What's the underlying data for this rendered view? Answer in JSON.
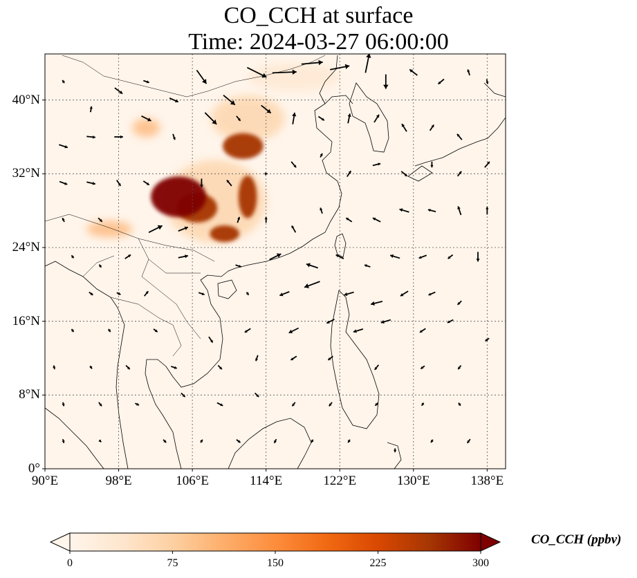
{
  "title": {
    "line1": "CO_CCH at surface",
    "line2": "Time: 2024-03-27 06:00:00"
  },
  "map": {
    "extent": {
      "lon": [
        90,
        140
      ],
      "lat": [
        0,
        45
      ]
    },
    "lon_ticks": [
      {
        "value": 90,
        "label": "90°E"
      },
      {
        "value": 98,
        "label": "98°E"
      },
      {
        "value": 106,
        "label": "106°E"
      },
      {
        "value": 114,
        "label": "114°E"
      },
      {
        "value": 122,
        "label": "122°E"
      },
      {
        "value": 130,
        "label": "130°E"
      },
      {
        "value": 138,
        "label": "138°E"
      }
    ],
    "lat_ticks": [
      {
        "value": 0,
        "label": "0°"
      },
      {
        "value": 8,
        "label": "8°N"
      },
      {
        "value": 16,
        "label": "16°N"
      },
      {
        "value": 24,
        "label": "24°N"
      },
      {
        "value": 32,
        "label": "32°N"
      },
      {
        "value": 40,
        "label": "40°N"
      }
    ],
    "gridlines": true,
    "background_color": "#fff5eb",
    "coastline_color": "#000000"
  },
  "colorbar": {
    "label": "CO_CCH (ppbv)",
    "colormap": "OrRd",
    "range": [
      0,
      300
    ],
    "ticks": [
      "0",
      "75",
      "150",
      "225",
      "300"
    ],
    "extend": "both",
    "colors": [
      "#fff5eb",
      "#fee6ce",
      "#fdd0a2",
      "#fdae6b",
      "#fd8d3c",
      "#f16913",
      "#d94801",
      "#a63603",
      "#7f0000"
    ]
  },
  "concentration_hotspots": [
    {
      "lon": 104.5,
      "lat": 29.5,
      "rx": 3.0,
      "ry": 2.2,
      "level": 300
    },
    {
      "lon": 106.5,
      "lat": 28.3,
      "rx": 2.2,
      "ry": 1.6,
      "level": 280
    },
    {
      "lon": 111.5,
      "lat": 35.0,
      "rx": 2.2,
      "ry": 1.4,
      "level": 260
    },
    {
      "lon": 112.0,
      "lat": 29.5,
      "rx": 1.0,
      "ry": 2.3,
      "level": 270
    },
    {
      "lon": 109.5,
      "lat": 25.5,
      "rx": 1.6,
      "ry": 0.9,
      "level": 260
    },
    {
      "lon": 97.0,
      "lat": 26.0,
      "rx": 2.5,
      "ry": 0.9,
      "level": 130
    },
    {
      "lon": 101.0,
      "lat": 37.0,
      "rx": 1.5,
      "ry": 1.0,
      "level": 120
    },
    {
      "lon": 108.5,
      "lat": 29.0,
      "rx": 5.5,
      "ry": 4.5,
      "level": 90
    },
    {
      "lon": 112.0,
      "lat": 38.0,
      "rx": 4.0,
      "ry": 2.5,
      "level": 60
    },
    {
      "lon": 117.0,
      "lat": 42.5,
      "rx": 5.0,
      "ry": 1.5,
      "level": 40
    }
  ],
  "wind_vectors": [
    {
      "lon": 92,
      "lat": 42,
      "u": -0.2,
      "v": 0.3
    },
    {
      "lon": 95,
      "lat": 39,
      "u": 0.1,
      "v": 0.6
    },
    {
      "lon": 98,
      "lat": 41,
      "u": 0.8,
      "v": -0.6
    },
    {
      "lon": 101,
      "lat": 42,
      "u": 0.6,
      "v": -0.2
    },
    {
      "lon": 104,
      "lat": 40,
      "u": 0.9,
      "v": -0.4
    },
    {
      "lon": 107,
      "lat": 42.5,
      "u": 1.0,
      "v": -1.4
    },
    {
      "lon": 110,
      "lat": 40,
      "u": 1.2,
      "v": -1.0
    },
    {
      "lon": 113,
      "lat": 43,
      "u": 2.0,
      "v": -1.0
    },
    {
      "lon": 116,
      "lat": 43,
      "u": 2.5,
      "v": 0.1
    },
    {
      "lon": 119,
      "lat": 44,
      "u": 2.2,
      "v": 0.2
    },
    {
      "lon": 122,
      "lat": 43.5,
      "u": 2.0,
      "v": 0.4
    },
    {
      "lon": 125,
      "lat": 44,
      "u": 0.4,
      "v": 2.0
    },
    {
      "lon": 127,
      "lat": 42,
      "u": 0.0,
      "v": -1.5
    },
    {
      "lon": 130,
      "lat": 43,
      "u": -0.8,
      "v": 0.6
    },
    {
      "lon": 133,
      "lat": 42,
      "u": -0.6,
      "v": -0.5
    },
    {
      "lon": 136,
      "lat": 43,
      "u": -0.2,
      "v": 0.6
    },
    {
      "lon": 138,
      "lat": 42,
      "u": 0.1,
      "v": -0.5
    },
    {
      "lon": 92,
      "lat": 35,
      "u": 0.9,
      "v": -0.3
    },
    {
      "lon": 95,
      "lat": 36,
      "u": 0.9,
      "v": -0.1
    },
    {
      "lon": 98,
      "lat": 36,
      "u": 0.9,
      "v": 0.0
    },
    {
      "lon": 101,
      "lat": 38,
      "u": 1.0,
      "v": -0.5
    },
    {
      "lon": 104,
      "lat": 36,
      "u": 0.2,
      "v": -0.6
    },
    {
      "lon": 108,
      "lat": 38,
      "u": 1.2,
      "v": -1.2
    },
    {
      "lon": 111,
      "lat": 38,
      "u": 0.4,
      "v": -0.5
    },
    {
      "lon": 114,
      "lat": 39,
      "u": 1.0,
      "v": -0.8
    },
    {
      "lon": 117,
      "lat": 38,
      "u": 0.2,
      "v": 1.2
    },
    {
      "lon": 120,
      "lat": 38,
      "u": 0.6,
      "v": -0.4
    },
    {
      "lon": 123,
      "lat": 38,
      "u": 0.2,
      "v": 1.0
    },
    {
      "lon": 126,
      "lat": 38,
      "u": 0.5,
      "v": 0.8
    },
    {
      "lon": 129,
      "lat": 37,
      "u": -0.5,
      "v": 0.8
    },
    {
      "lon": 132,
      "lat": 37,
      "u": 0.4,
      "v": 0.6
    },
    {
      "lon": 135,
      "lat": 36,
      "u": -0.5,
      "v": 0.6
    },
    {
      "lon": 92,
      "lat": 31,
      "u": 0.8,
      "v": -0.3
    },
    {
      "lon": 95,
      "lat": 31,
      "u": 0.9,
      "v": -0.2
    },
    {
      "lon": 98,
      "lat": 31,
      "u": 0.4,
      "v": -0.6
    },
    {
      "lon": 101,
      "lat": 31,
      "u": 0.6,
      "v": -0.4
    },
    {
      "lon": 107,
      "lat": 31,
      "u": 0.0,
      "v": -0.9
    },
    {
      "lon": 110,
      "lat": 31,
      "u": -0.5,
      "v": 0.6
    },
    {
      "lon": 114,
      "lat": 32,
      "u": 0.3,
      "v": 0.0
    },
    {
      "lon": 117,
      "lat": 33,
      "u": 0.5,
      "v": -0.6
    },
    {
      "lon": 120,
      "lat": 34,
      "u": 0.2,
      "v": 0.4
    },
    {
      "lon": 123,
      "lat": 32,
      "u": 0.4,
      "v": 0.6
    },
    {
      "lon": 126,
      "lat": 33,
      "u": 0.8,
      "v": 0.2
    },
    {
      "lon": 129,
      "lat": 32,
      "u": 0.6,
      "v": -0.5
    },
    {
      "lon": 132,
      "lat": 33,
      "u": 0.0,
      "v": -0.6
    },
    {
      "lon": 135,
      "lat": 32,
      "u": 0.4,
      "v": 0.5
    },
    {
      "lon": 138,
      "lat": 33,
      "u": 0.5,
      "v": 0.6
    },
    {
      "lon": 92,
      "lat": 27,
      "u": -0.2,
      "v": 0.4
    },
    {
      "lon": 96,
      "lat": 27,
      "u": 0.4,
      "v": -0.4
    },
    {
      "lon": 102,
      "lat": 26,
      "u": 1.4,
      "v": 0.7
    },
    {
      "lon": 105,
      "lat": 26,
      "u": 1.0,
      "v": 0.4
    },
    {
      "lon": 111,
      "lat": 27,
      "u": 0.2,
      "v": 0.6
    },
    {
      "lon": 114,
      "lat": 27,
      "u": 0.0,
      "v": 0.6
    },
    {
      "lon": 117,
      "lat": 26,
      "u": -0.4,
      "v": 0.7
    },
    {
      "lon": 120,
      "lat": 28,
      "u": -0.2,
      "v": 0.6
    },
    {
      "lon": 123,
      "lat": 27,
      "u": -0.6,
      "v": 0.4
    },
    {
      "lon": 126,
      "lat": 27,
      "u": -0.8,
      "v": 0.4
    },
    {
      "lon": 129,
      "lat": 28,
      "u": -1.0,
      "v": 0.3
    },
    {
      "lon": 132,
      "lat": 28,
      "u": -0.8,
      "v": 0.2
    },
    {
      "lon": 135,
      "lat": 28,
      "u": -0.3,
      "v": 0.9
    },
    {
      "lon": 138,
      "lat": 28,
      "u": 0.0,
      "v": 0.8
    },
    {
      "lon": 93,
      "lat": 23,
      "u": -0.2,
      "v": 0.3
    },
    {
      "lon": 96,
      "lat": 22,
      "u": -0.2,
      "v": 0.3
    },
    {
      "lon": 99,
      "lat": 23,
      "u": 0.6,
      "v": 0.4
    },
    {
      "lon": 105,
      "lat": 23,
      "u": 1.0,
      "v": 0.2
    },
    {
      "lon": 111,
      "lat": 22,
      "u": 0.6,
      "v": -0.2
    },
    {
      "lon": 115,
      "lat": 23,
      "u": 1.2,
      "v": 0.6
    },
    {
      "lon": 119,
      "lat": 22,
      "u": -1.2,
      "v": 0.4
    },
    {
      "lon": 122,
      "lat": 23,
      "u": -0.8,
      "v": 0.4
    },
    {
      "lon": 125,
      "lat": 22,
      "u": -0.6,
      "v": 0.2
    },
    {
      "lon": 128,
      "lat": 23,
      "u": -1.0,
      "v": 0.3
    },
    {
      "lon": 131,
      "lat": 23,
      "u": -0.8,
      "v": -0.3
    },
    {
      "lon": 134,
      "lat": 23,
      "u": -0.5,
      "v": -0.4
    },
    {
      "lon": 137,
      "lat": 23,
      "u": 0.0,
      "v": -1.0
    },
    {
      "lon": 95,
      "lat": 19,
      "u": 0.4,
      "v": -0.3
    },
    {
      "lon": 98,
      "lat": 19,
      "u": 0.4,
      "v": -0.2
    },
    {
      "lon": 101,
      "lat": 19,
      "u": 0.4,
      "v": 0.5
    },
    {
      "lon": 107,
      "lat": 19,
      "u": 0.6,
      "v": -0.2
    },
    {
      "lon": 112,
      "lat": 19,
      "u": 0.2,
      "v": -0.3
    },
    {
      "lon": 116,
      "lat": 19,
      "u": -1.0,
      "v": -0.4
    },
    {
      "lon": 119,
      "lat": 20,
      "u": -1.6,
      "v": -0.6
    },
    {
      "lon": 123,
      "lat": 19,
      "u": -1.0,
      "v": -0.3
    },
    {
      "lon": 126,
      "lat": 18,
      "u": -1.2,
      "v": -0.3
    },
    {
      "lon": 129,
      "lat": 19,
      "u": -0.8,
      "v": -0.5
    },
    {
      "lon": 132,
      "lat": 19,
      "u": -0.7,
      "v": -0.3
    },
    {
      "lon": 135,
      "lat": 18,
      "u": -0.4,
      "v": -0.4
    },
    {
      "lon": 93,
      "lat": 15,
      "u": -0.2,
      "v": 0.3
    },
    {
      "lon": 97,
      "lat": 15,
      "u": 0.2,
      "v": -0.3
    },
    {
      "lon": 102,
      "lat": 15,
      "u": 0.4,
      "v": -0.3
    },
    {
      "lon": 108,
      "lat": 14,
      "u": 0.4,
      "v": -0.6
    },
    {
      "lon": 112,
      "lat": 15,
      "u": -0.6,
      "v": -0.4
    },
    {
      "lon": 117,
      "lat": 15,
      "u": -1.0,
      "v": -0.5
    },
    {
      "lon": 121,
      "lat": 16,
      "u": -0.8,
      "v": -0.4
    },
    {
      "lon": 124,
      "lat": 15,
      "u": -1.0,
      "v": -0.3
    },
    {
      "lon": 127,
      "lat": 16,
      "u": -1.0,
      "v": -0.3
    },
    {
      "lon": 131,
      "lat": 15,
      "u": -0.6,
      "v": -0.4
    },
    {
      "lon": 134,
      "lat": 16,
      "u": -0.6,
      "v": -0.3
    },
    {
      "lon": 138,
      "lat": 14,
      "u": -0.4,
      "v": -0.3
    },
    {
      "lon": 91,
      "lat": 11,
      "u": -0.1,
      "v": 0.4
    },
    {
      "lon": 95,
      "lat": 11,
      "u": 0.2,
      "v": -0.3
    },
    {
      "lon": 99,
      "lat": 11,
      "u": 0.4,
      "v": -0.4
    },
    {
      "lon": 104,
      "lat": 11,
      "u": 0.6,
      "v": -0.2
    },
    {
      "lon": 109,
      "lat": 11,
      "u": 0.4,
      "v": -0.4
    },
    {
      "lon": 113,
      "lat": 12,
      "u": -0.2,
      "v": -0.6
    },
    {
      "lon": 117,
      "lat": 12,
      "u": -0.6,
      "v": -0.4
    },
    {
      "lon": 121,
      "lat": 12,
      "u": -0.5,
      "v": -0.4
    },
    {
      "lon": 126,
      "lat": 11,
      "u": -0.4,
      "v": -0.5
    },
    {
      "lon": 131,
      "lat": 11,
      "u": -0.4,
      "v": -0.3
    },
    {
      "lon": 135,
      "lat": 11,
      "u": -0.3,
      "v": -0.4
    },
    {
      "lon": 92,
      "lat": 7,
      "u": 0.1,
      "v": -0.4
    },
    {
      "lon": 96,
      "lat": 7,
      "u": 0.3,
      "v": -0.4
    },
    {
      "lon": 100,
      "lat": 7,
      "u": 0.4,
      "v": -0.2
    },
    {
      "lon": 105,
      "lat": 8,
      "u": 0.4,
      "v": -0.4
    },
    {
      "lon": 109,
      "lat": 7,
      "u": 0.6,
      "v": -0.3
    },
    {
      "lon": 113,
      "lat": 8,
      "u": 0.4,
      "v": -0.4
    },
    {
      "lon": 117,
      "lat": 7,
      "u": -0.3,
      "v": -0.4
    },
    {
      "lon": 121,
      "lat": 7,
      "u": -0.3,
      "v": -0.4
    },
    {
      "lon": 126,
      "lat": 7,
      "u": -0.3,
      "v": -0.3
    },
    {
      "lon": 131,
      "lat": 7,
      "u": -0.2,
      "v": -0.3
    },
    {
      "lon": 135,
      "lat": 7,
      "u": -0.2,
      "v": 0.3
    },
    {
      "lon": 92,
      "lat": 3,
      "u": 0.1,
      "v": -0.4
    },
    {
      "lon": 96,
      "lat": 3,
      "u": 0.2,
      "v": -0.2
    },
    {
      "lon": 103,
      "lat": 3,
      "u": 0.3,
      "v": -0.3
    },
    {
      "lon": 107,
      "lat": 3,
      "u": 0.2,
      "v": 0.3
    },
    {
      "lon": 111,
      "lat": 3,
      "u": 0.4,
      "v": -0.3
    },
    {
      "lon": 115,
      "lat": 3,
      "u": -0.2,
      "v": -0.4
    },
    {
      "lon": 119,
      "lat": 3,
      "u": -0.2,
      "v": -0.3
    },
    {
      "lon": 123,
      "lat": 3,
      "u": -0.2,
      "v": -0.3
    },
    {
      "lon": 128,
      "lat": 2,
      "u": 0.0,
      "v": -0.4
    },
    {
      "lon": 132,
      "lat": 3,
      "u": -0.2,
      "v": -0.3
    },
    {
      "lon": 136,
      "lat": 3,
      "u": -0.3,
      "v": -0.4
    }
  ]
}
